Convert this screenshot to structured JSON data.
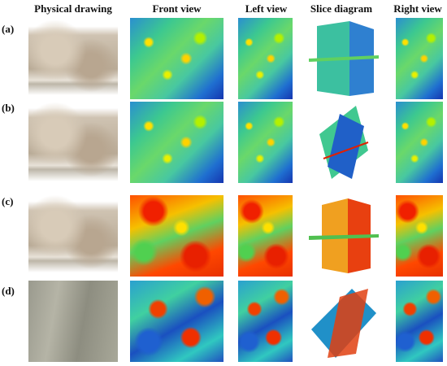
{
  "headers": [
    "Physical drawing",
    "Front view",
    "Left view",
    "Slice diagram",
    "Right view"
  ],
  "rows": [
    {
      "label": "(a)"
    },
    {
      "label": "(b)"
    },
    {
      "label": "(c)"
    },
    {
      "label": "(d)"
    }
  ]
}
